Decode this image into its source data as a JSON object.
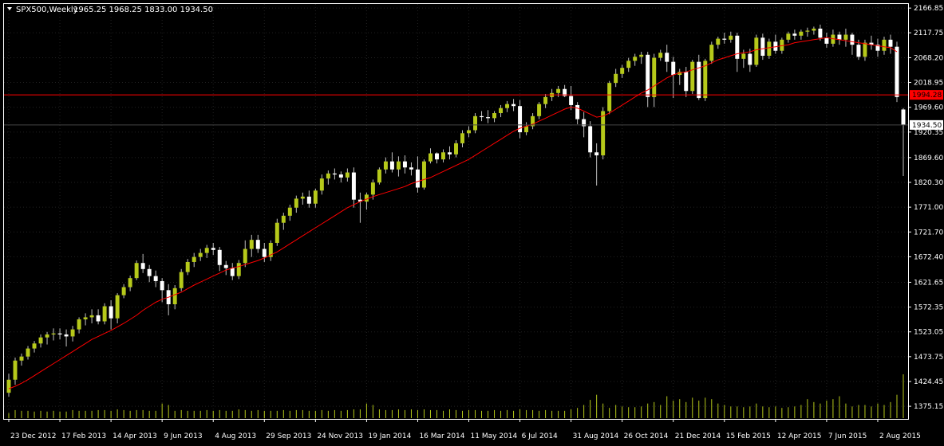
{
  "header": {
    "symbol_label": "SPX500,Weekly",
    "ohlc_label": "1965.25 1968.25 1833.00 1934.50"
  },
  "price_labels": {
    "horizontal_line": "1994.28",
    "last_price": "1934.50"
  },
  "colors": {
    "background": "#000000",
    "chart_frame": "#ffffff",
    "bull_candle": "#b6c91a",
    "bear_candle": "#ffffff",
    "wick": "#c0c0c0",
    "moving_average": "#ff0000",
    "horizontal_line": "#ff0000",
    "volume": "#b6c91a",
    "grid": "#222222",
    "text": "#ffffff"
  },
  "chart_data": {
    "type": "candlestick",
    "timeframe": "Weekly",
    "y_axis": {
      "min": 1350.0,
      "max": 2175.0,
      "ticks": [
        "2166.85",
        "2117.75",
        "2068.20",
        "2018.95",
        "1969.60",
        "1920.35",
        "1869.60",
        "1820.30",
        "1771.00",
        "1721.70",
        "1672.40",
        "1621.65",
        "1572.35",
        "1523.05",
        "1473.75",
        "1424.45",
        "1375.15"
      ],
      "tick_values": [
        2166.85,
        2117.75,
        2068.2,
        2018.95,
        1969.6,
        1920.35,
        1869.6,
        1820.3,
        1771.0,
        1721.7,
        1672.4,
        1621.65,
        1572.35,
        1523.05,
        1473.75,
        1424.45,
        1375.15
      ]
    },
    "x_axis": {
      "labels": [
        "23 Dec 2012",
        "17 Feb 2013",
        "14 Apr 2013",
        "9 Jun 2013",
        "4 Aug 2013",
        "29 Sep 2013",
        "24 Nov 2013",
        "19 Jan 2014",
        "16 Mar 2014",
        "11 May 2014",
        "6 Jul 2014",
        "31 Aug 2014",
        "26 Oct 2014",
        "21 Dec 2014",
        "15 Feb 2015",
        "12 Apr 2015",
        "7 Jun 2015",
        "2 Aug 2015"
      ],
      "label_bar_index": [
        0,
        8,
        16,
        24,
        32,
        40,
        48,
        56,
        64,
        72,
        80,
        88,
        96,
        104,
        112,
        120,
        128,
        136
      ]
    },
    "horizontal_line_value": 1994.28,
    "candles": [
      {
        "o": 1402,
        "h": 1440,
        "l": 1394,
        "c": 1428
      },
      {
        "o": 1428,
        "h": 1472,
        "l": 1418,
        "c": 1466
      },
      {
        "o": 1466,
        "h": 1480,
        "l": 1456,
        "c": 1474
      },
      {
        "o": 1474,
        "h": 1495,
        "l": 1468,
        "c": 1490
      },
      {
        "o": 1490,
        "h": 1505,
        "l": 1482,
        "c": 1500
      },
      {
        "o": 1500,
        "h": 1518,
        "l": 1492,
        "c": 1512
      },
      {
        "o": 1512,
        "h": 1523,
        "l": 1498,
        "c": 1518
      },
      {
        "o": 1518,
        "h": 1530,
        "l": 1506,
        "c": 1520
      },
      {
        "o": 1520,
        "h": 1530,
        "l": 1508,
        "c": 1518
      },
      {
        "o": 1518,
        "h": 1528,
        "l": 1494,
        "c": 1514
      },
      {
        "o": 1514,
        "h": 1535,
        "l": 1504,
        "c": 1528
      },
      {
        "o": 1528,
        "h": 1552,
        "l": 1520,
        "c": 1548
      },
      {
        "o": 1548,
        "h": 1560,
        "l": 1536,
        "c": 1552
      },
      {
        "o": 1552,
        "h": 1568,
        "l": 1540,
        "c": 1556
      },
      {
        "o": 1556,
        "h": 1568,
        "l": 1538,
        "c": 1544
      },
      {
        "o": 1544,
        "h": 1580,
        "l": 1538,
        "c": 1574
      },
      {
        "o": 1574,
        "h": 1586,
        "l": 1528,
        "c": 1550
      },
      {
        "o": 1550,
        "h": 1600,
        "l": 1540,
        "c": 1596
      },
      {
        "o": 1596,
        "h": 1618,
        "l": 1590,
        "c": 1612
      },
      {
        "o": 1612,
        "h": 1635,
        "l": 1604,
        "c": 1630
      },
      {
        "o": 1630,
        "h": 1665,
        "l": 1626,
        "c": 1660
      },
      {
        "o": 1660,
        "h": 1678,
        "l": 1640,
        "c": 1648
      },
      {
        "o": 1648,
        "h": 1656,
        "l": 1622,
        "c": 1634
      },
      {
        "o": 1634,
        "h": 1645,
        "l": 1612,
        "c": 1624
      },
      {
        "o": 1624,
        "h": 1630,
        "l": 1582,
        "c": 1606
      },
      {
        "o": 1606,
        "h": 1618,
        "l": 1556,
        "c": 1578
      },
      {
        "o": 1578,
        "h": 1616,
        "l": 1568,
        "c": 1610
      },
      {
        "o": 1610,
        "h": 1648,
        "l": 1604,
        "c": 1642
      },
      {
        "o": 1642,
        "h": 1668,
        "l": 1636,
        "c": 1662
      },
      {
        "o": 1662,
        "h": 1680,
        "l": 1652,
        "c": 1672
      },
      {
        "o": 1672,
        "h": 1688,
        "l": 1664,
        "c": 1680
      },
      {
        "o": 1680,
        "h": 1696,
        "l": 1670,
        "c": 1690
      },
      {
        "o": 1690,
        "h": 1700,
        "l": 1676,
        "c": 1686
      },
      {
        "o": 1686,
        "h": 1692,
        "l": 1644,
        "c": 1656
      },
      {
        "o": 1656,
        "h": 1664,
        "l": 1636,
        "c": 1650
      },
      {
        "o": 1650,
        "h": 1660,
        "l": 1626,
        "c": 1634
      },
      {
        "o": 1634,
        "h": 1666,
        "l": 1628,
        "c": 1660
      },
      {
        "o": 1660,
        "h": 1705,
        "l": 1652,
        "c": 1688
      },
      {
        "o": 1688,
        "h": 1716,
        "l": 1672,
        "c": 1706
      },
      {
        "o": 1706,
        "h": 1716,
        "l": 1680,
        "c": 1688
      },
      {
        "o": 1688,
        "h": 1700,
        "l": 1662,
        "c": 1672
      },
      {
        "o": 1672,
        "h": 1705,
        "l": 1664,
        "c": 1700
      },
      {
        "o": 1700,
        "h": 1748,
        "l": 1694,
        "c": 1740
      },
      {
        "o": 1740,
        "h": 1760,
        "l": 1726,
        "c": 1754
      },
      {
        "o": 1754,
        "h": 1776,
        "l": 1744,
        "c": 1770
      },
      {
        "o": 1770,
        "h": 1794,
        "l": 1760,
        "c": 1788
      },
      {
        "o": 1788,
        "h": 1800,
        "l": 1776,
        "c": 1792
      },
      {
        "o": 1792,
        "h": 1804,
        "l": 1770,
        "c": 1778
      },
      {
        "o": 1778,
        "h": 1808,
        "l": 1770,
        "c": 1804
      },
      {
        "o": 1804,
        "h": 1836,
        "l": 1796,
        "c": 1828
      },
      {
        "o": 1828,
        "h": 1844,
        "l": 1816,
        "c": 1838
      },
      {
        "o": 1838,
        "h": 1848,
        "l": 1826,
        "c": 1836
      },
      {
        "o": 1836,
        "h": 1842,
        "l": 1820,
        "c": 1830
      },
      {
        "o": 1830,
        "h": 1848,
        "l": 1822,
        "c": 1840
      },
      {
        "o": 1840,
        "h": 1850,
        "l": 1770,
        "c": 1786
      },
      {
        "o": 1786,
        "h": 1800,
        "l": 1740,
        "c": 1782
      },
      {
        "o": 1782,
        "h": 1800,
        "l": 1766,
        "c": 1796
      },
      {
        "o": 1796,
        "h": 1826,
        "l": 1786,
        "c": 1820
      },
      {
        "o": 1820,
        "h": 1850,
        "l": 1816,
        "c": 1846
      },
      {
        "o": 1846,
        "h": 1870,
        "l": 1838,
        "c": 1862
      },
      {
        "o": 1862,
        "h": 1880,
        "l": 1840,
        "c": 1846
      },
      {
        "o": 1846,
        "h": 1872,
        "l": 1832,
        "c": 1862
      },
      {
        "o": 1862,
        "h": 1874,
        "l": 1838,
        "c": 1850
      },
      {
        "o": 1850,
        "h": 1860,
        "l": 1834,
        "c": 1846
      },
      {
        "o": 1846,
        "h": 1872,
        "l": 1800,
        "c": 1810
      },
      {
        "o": 1810,
        "h": 1866,
        "l": 1806,
        "c": 1862
      },
      {
        "o": 1862,
        "h": 1888,
        "l": 1858,
        "c": 1878
      },
      {
        "o": 1878,
        "h": 1880,
        "l": 1858,
        "c": 1866
      },
      {
        "o": 1866,
        "h": 1886,
        "l": 1860,
        "c": 1880
      },
      {
        "o": 1880,
        "h": 1892,
        "l": 1866,
        "c": 1876
      },
      {
        "o": 1876,
        "h": 1904,
        "l": 1870,
        "c": 1898
      },
      {
        "o": 1898,
        "h": 1924,
        "l": 1890,
        "c": 1918
      },
      {
        "o": 1918,
        "h": 1932,
        "l": 1910,
        "c": 1924
      },
      {
        "o": 1924,
        "h": 1958,
        "l": 1918,
        "c": 1952
      },
      {
        "o": 1952,
        "h": 1962,
        "l": 1942,
        "c": 1950
      },
      {
        "o": 1950,
        "h": 1964,
        "l": 1938,
        "c": 1948
      },
      {
        "o": 1948,
        "h": 1962,
        "l": 1940,
        "c": 1958
      },
      {
        "o": 1958,
        "h": 1974,
        "l": 1950,
        "c": 1968
      },
      {
        "o": 1968,
        "h": 1982,
        "l": 1960,
        "c": 1976
      },
      {
        "o": 1976,
        "h": 1986,
        "l": 1962,
        "c": 1972
      },
      {
        "o": 1972,
        "h": 1984,
        "l": 1908,
        "c": 1920
      },
      {
        "o": 1920,
        "h": 1940,
        "l": 1914,
        "c": 1932
      },
      {
        "o": 1932,
        "h": 1958,
        "l": 1926,
        "c": 1952
      },
      {
        "o": 1952,
        "h": 1980,
        "l": 1946,
        "c": 1976
      },
      {
        "o": 1976,
        "h": 1996,
        "l": 1968,
        "c": 1990
      },
      {
        "o": 1990,
        "h": 2006,
        "l": 1982,
        "c": 1998
      },
      {
        "o": 1998,
        "h": 2012,
        "l": 1990,
        "c": 2006
      },
      {
        "o": 2006,
        "h": 2014,
        "l": 1990,
        "c": 1992
      },
      {
        "o": 1992,
        "h": 2012,
        "l": 1964,
        "c": 1974
      },
      {
        "o": 1974,
        "h": 1980,
        "l": 1936,
        "c": 1946
      },
      {
        "o": 1946,
        "h": 1960,
        "l": 1910,
        "c": 1932
      },
      {
        "o": 1932,
        "h": 1942,
        "l": 1870,
        "c": 1880
      },
      {
        "o": 1880,
        "h": 1898,
        "l": 1814,
        "c": 1874
      },
      {
        "o": 1874,
        "h": 1970,
        "l": 1866,
        "c": 1962
      },
      {
        "o": 1962,
        "h": 2022,
        "l": 1956,
        "c": 2018
      },
      {
        "o": 2018,
        "h": 2046,
        "l": 2010,
        "c": 2036
      },
      {
        "o": 2036,
        "h": 2054,
        "l": 2028,
        "c": 2048
      },
      {
        "o": 2048,
        "h": 2068,
        "l": 2040,
        "c": 2062
      },
      {
        "o": 2062,
        "h": 2076,
        "l": 2052,
        "c": 2070
      },
      {
        "o": 2070,
        "h": 2080,
        "l": 2056,
        "c": 2074
      },
      {
        "o": 2074,
        "h": 2080,
        "l": 1970,
        "c": 1990
      },
      {
        "o": 1990,
        "h": 2076,
        "l": 1970,
        "c": 2068
      },
      {
        "o": 2068,
        "h": 2084,
        "l": 2062,
        "c": 2078
      },
      {
        "o": 2078,
        "h": 2094,
        "l": 2040,
        "c": 2060
      },
      {
        "o": 2060,
        "h": 2070,
        "l": 1988,
        "c": 2034
      },
      {
        "o": 2034,
        "h": 2046,
        "l": 2014,
        "c": 2040
      },
      {
        "o": 2040,
        "h": 2050,
        "l": 1990,
        "c": 2002
      },
      {
        "o": 2002,
        "h": 2064,
        "l": 1996,
        "c": 2060
      },
      {
        "o": 2060,
        "h": 2074,
        "l": 1984,
        "c": 1988
      },
      {
        "o": 1988,
        "h": 2066,
        "l": 1982,
        "c": 2062
      },
      {
        "o": 2062,
        "h": 2100,
        "l": 2056,
        "c": 2094
      },
      {
        "o": 2094,
        "h": 2110,
        "l": 2086,
        "c": 2106
      },
      {
        "o": 2106,
        "h": 2118,
        "l": 2096,
        "c": 2104
      },
      {
        "o": 2104,
        "h": 2120,
        "l": 2098,
        "c": 2112
      },
      {
        "o": 2112,
        "h": 2118,
        "l": 2040,
        "c": 2066
      },
      {
        "o": 2066,
        "h": 2084,
        "l": 2048,
        "c": 2076
      },
      {
        "o": 2076,
        "h": 2086,
        "l": 2040,
        "c": 2054
      },
      {
        "o": 2054,
        "h": 2114,
        "l": 2050,
        "c": 2108
      },
      {
        "o": 2108,
        "h": 2116,
        "l": 2064,
        "c": 2072
      },
      {
        "o": 2072,
        "h": 2106,
        "l": 2066,
        "c": 2100
      },
      {
        "o": 2100,
        "h": 2114,
        "l": 2076,
        "c": 2082
      },
      {
        "o": 2082,
        "h": 2108,
        "l": 2076,
        "c": 2104
      },
      {
        "o": 2104,
        "h": 2120,
        "l": 2098,
        "c": 2116
      },
      {
        "o": 2116,
        "h": 2124,
        "l": 2104,
        "c": 2112
      },
      {
        "o": 2112,
        "h": 2124,
        "l": 2104,
        "c": 2120
      },
      {
        "o": 2120,
        "h": 2128,
        "l": 2110,
        "c": 2122
      },
      {
        "o": 2122,
        "h": 2130,
        "l": 2114,
        "c": 2126
      },
      {
        "o": 2126,
        "h": 2134,
        "l": 2102,
        "c": 2108
      },
      {
        "o": 2108,
        "h": 2118,
        "l": 2088,
        "c": 2096
      },
      {
        "o": 2096,
        "h": 2124,
        "l": 2090,
        "c": 2114
      },
      {
        "o": 2114,
        "h": 2120,
        "l": 2094,
        "c": 2104
      },
      {
        "o": 2104,
        "h": 2126,
        "l": 2090,
        "c": 2114
      },
      {
        "o": 2114,
        "h": 2118,
        "l": 2074,
        "c": 2094
      },
      {
        "o": 2094,
        "h": 2104,
        "l": 2064,
        "c": 2070
      },
      {
        "o": 2070,
        "h": 2104,
        "l": 2062,
        "c": 2098
      },
      {
        "o": 2098,
        "h": 2112,
        "l": 2084,
        "c": 2094
      },
      {
        "o": 2094,
        "h": 2106,
        "l": 2070,
        "c": 2082
      },
      {
        "o": 2082,
        "h": 2110,
        "l": 2074,
        "c": 2104
      },
      {
        "o": 2104,
        "h": 2114,
        "l": 2076,
        "c": 2090
      },
      {
        "o": 2090,
        "h": 2100,
        "l": 1980,
        "c": 1990
      },
      {
        "o": 1965.25,
        "h": 1968.25,
        "l": 1833.0,
        "c": 1934.5
      }
    ],
    "moving_average": {
      "period": 10,
      "values": [
        1410,
        1415,
        1421,
        1428,
        1436,
        1444,
        1452,
        1460,
        1468,
        1476,
        1484,
        1492,
        1500,
        1508,
        1514,
        1520,
        1526,
        1533,
        1540,
        1548,
        1556,
        1566,
        1574,
        1582,
        1588,
        1592,
        1597,
        1602,
        1609,
        1616,
        1622,
        1628,
        1634,
        1640,
        1646,
        1650,
        1653,
        1657,
        1661,
        1665,
        1670,
        1676,
        1682,
        1690,
        1698,
        1706,
        1714,
        1722,
        1730,
        1738,
        1746,
        1754,
        1762,
        1770,
        1776,
        1782,
        1787,
        1792,
        1796,
        1800,
        1804,
        1808,
        1812,
        1818,
        1822,
        1826,
        1830,
        1836,
        1842,
        1848,
        1854,
        1860,
        1866,
        1874,
        1882,
        1890,
        1898,
        1906,
        1914,
        1922,
        1928,
        1932,
        1936,
        1942,
        1948,
        1954,
        1960,
        1966,
        1970,
        1968,
        1962,
        1956,
        1950,
        1952,
        1958,
        1966,
        1974,
        1982,
        1990,
        1998,
        2004,
        2012,
        2020,
        2028,
        2034,
        2038,
        2040,
        2044,
        2048,
        2052,
        2058,
        2064,
        2068,
        2072,
        2076,
        2078,
        2080,
        2084,
        2086,
        2088,
        2090,
        2092,
        2094,
        2098,
        2100,
        2102,
        2104,
        2106,
        2108,
        2106,
        2104,
        2102,
        2100,
        2098,
        2096,
        2094,
        2092,
        2090,
        2088,
        2080
      ]
    },
    "volume": [
      0.35,
      0.55,
      0.5,
      0.5,
      0.45,
      0.5,
      0.45,
      0.5,
      0.45,
      0.45,
      0.55,
      0.5,
      0.5,
      0.5,
      0.55,
      0.55,
      0.5,
      0.6,
      0.55,
      0.5,
      0.55,
      0.55,
      0.5,
      0.5,
      1.0,
      0.9,
      0.5,
      0.55,
      0.5,
      0.5,
      0.5,
      0.55,
      0.5,
      0.55,
      0.5,
      0.5,
      0.6,
      0.55,
      0.5,
      0.55,
      0.5,
      0.5,
      0.5,
      0.55,
      0.5,
      0.55,
      0.55,
      0.5,
      0.5,
      0.55,
      0.5,
      0.55,
      0.5,
      0.55,
      0.6,
      0.6,
      1.0,
      0.9,
      0.6,
      0.55,
      0.55,
      0.6,
      0.55,
      0.6,
      0.55,
      0.6,
      0.55,
      0.55,
      0.5,
      0.6,
      0.55,
      0.5,
      0.55,
      0.55,
      0.5,
      0.5,
      0.55,
      0.5,
      0.55,
      0.5,
      0.6,
      0.55,
      0.55,
      0.5,
      0.55,
      0.5,
      0.5,
      0.5,
      0.6,
      0.7,
      0.9,
      1.25,
      1.6,
      1.0,
      0.7,
      0.9,
      0.8,
      0.75,
      0.75,
      0.8,
      1.0,
      1.1,
      0.9,
      1.5,
      1.2,
      1.3,
      1.1,
      1.4,
      1.2,
      1.4,
      1.3,
      1.0,
      0.9,
      0.8,
      0.8,
      0.75,
      0.8,
      1.0,
      0.8,
      0.75,
      0.8,
      0.7,
      0.75,
      0.8,
      0.9,
      1.3,
      1.1,
      1.0,
      1.2,
      1.3,
      1.5,
      1.0,
      0.8,
      0.9,
      0.9,
      0.8,
      1.0,
      0.9,
      1.1,
      1.6,
      3.0
    ]
  }
}
